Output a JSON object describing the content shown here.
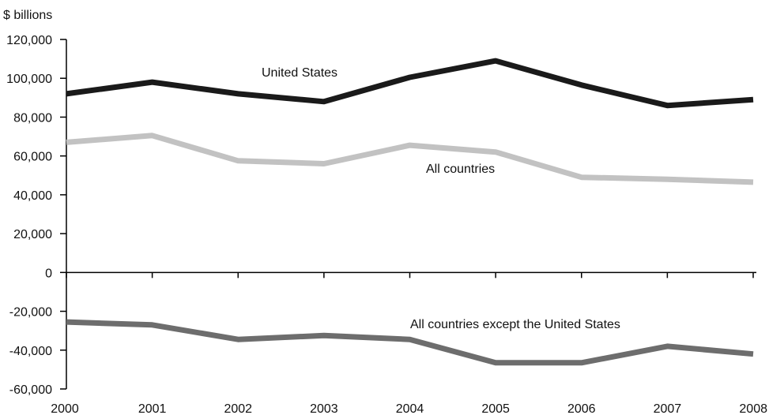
{
  "chart_data": {
    "type": "line",
    "title": "",
    "unit_label": "$ billions",
    "xlabel": "",
    "ylabel": "",
    "x": [
      "2000",
      "2001",
      "2002",
      "2003",
      "2004",
      "2005",
      "2006",
      "2007",
      "2008"
    ],
    "ylim": [
      -60000,
      120000
    ],
    "yticks": [
      120000,
      100000,
      80000,
      60000,
      40000,
      20000,
      0,
      -20000,
      -40000,
      -60000
    ],
    "ytick_labels": [
      "120,000",
      "100,000",
      "80,000",
      "60,000",
      "40,000",
      "20,000",
      "0",
      "-20,000",
      "-40,000",
      "-60,000"
    ],
    "grid": false,
    "series": [
      {
        "name": "United States",
        "color": "#1a1a1a",
        "values": [
          92000,
          98000,
          92000,
          88000,
          100500,
          109000,
          96500,
          86000,
          89000
        ]
      },
      {
        "name": "All countries",
        "color": "#c2c2c2",
        "values": [
          67000,
          70500,
          57500,
          56000,
          65500,
          62000,
          49000,
          48000,
          46500
        ]
      },
      {
        "name": "All countries except the United States",
        "color": "#6d6d6d",
        "values": [
          -25500,
          -27000,
          -34500,
          -32500,
          -34500,
          -46500,
          -46500,
          -38000,
          -42000
        ]
      }
    ]
  }
}
